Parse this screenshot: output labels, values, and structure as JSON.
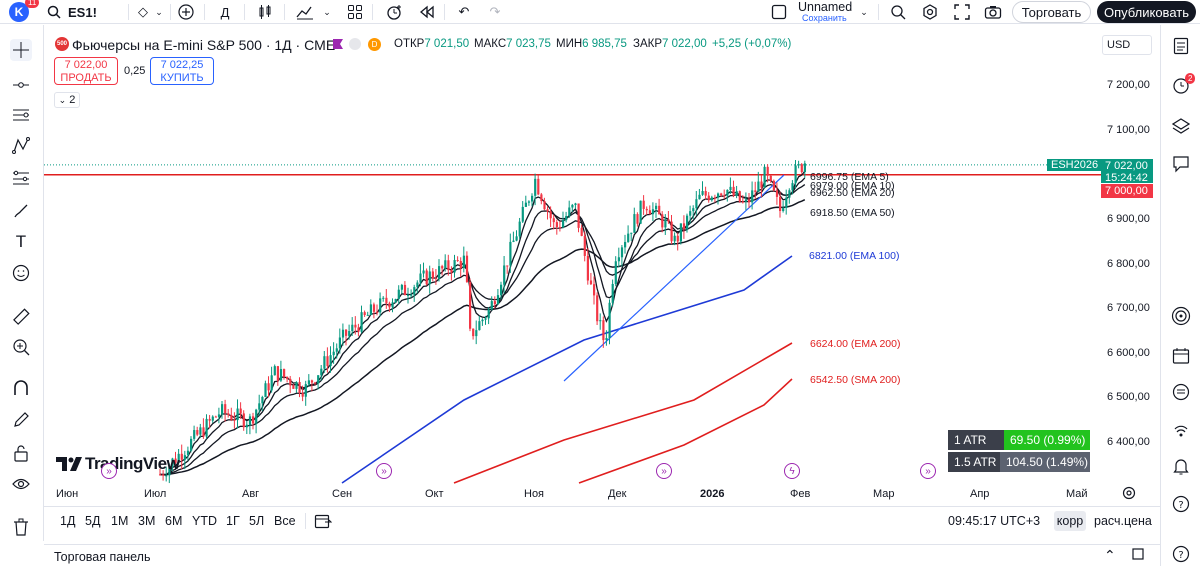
{
  "topbar": {
    "avatar_letter": "K",
    "avatar_badge": "11",
    "symbol": "ES1!",
    "interval": "Д",
    "layout_name": "Unnamed",
    "layout_save": "Сохранить",
    "trade_label": "Торговать",
    "publish_label": "Опубликовать"
  },
  "header": {
    "badge": "500",
    "title": "Фьючерсы на E-mini S&P 500 · 1Д · CME",
    "d_badge": "D",
    "open_label": "ОТКР",
    "open": "7 021,50",
    "high_label": "МАКС",
    "high": "7 023,75",
    "low_label": "МИН",
    "low": "6 985,75",
    "close_label": "ЗАКР",
    "close": "7 022,00",
    "change": "+5,25 (+0,07%)",
    "sell_price": "7 022,00",
    "sell_label": "ПРОДАТЬ",
    "spread": "0,25",
    "buy_price": "7 022,25",
    "buy_label": "КУПИТЬ",
    "indicators_count": "2"
  },
  "currency": "USD",
  "yaxis": [
    "7 200,00",
    "7 100,00",
    "6 900,00",
    "6 800,00",
    "6 700,00",
    "6 600,00",
    "6 500,00",
    "6 400,00"
  ],
  "xaxis": [
    "Июн",
    "Июл",
    "Авг",
    "Сен",
    "Окт",
    "Ноя",
    "Дек",
    "2026",
    "Фев",
    "Мар",
    "Апр",
    "Май"
  ],
  "symbol_tag": "ESH2026",
  "last_price": "7 022,00",
  "countdown": "15:24:42",
  "level_price": "7 000,00",
  "ema_labels": {
    "ema5": "6996.75 (EMA 5)",
    "ema10": "6979.00 (EMA 10)",
    "ema20": "6962.50 (EMA 20)",
    "ema50": "6918.50 (EMA 50)",
    "ema100": "6821.00 (EMA 100)",
    "ema200": "6624.00 (EMA 200)",
    "sma200": "6542.50 (SMA 200)"
  },
  "atr": [
    {
      "label": "1 ATR",
      "value": "69.50 (0.99%)"
    },
    {
      "label": "1.5 ATR",
      "value": "104.50 (1.49%)"
    }
  ],
  "watermark": "TradingView",
  "bottom": {
    "ranges": [
      "1Д",
      "5Д",
      "1М",
      "3М",
      "6М",
      "YTD",
      "1Г",
      "5Л",
      "Все"
    ],
    "time": "09:45:17 UTC+3",
    "corr": "корр",
    "settlement": "расч.цена",
    "panel_title": "Торговая панель"
  },
  "colors": {
    "up": "#089981",
    "down": "#f23645",
    "accent": "#2962ff",
    "ema_black": "#131722",
    "ema100": "#1e3ad6",
    "ema200": "#e01e1e"
  }
}
